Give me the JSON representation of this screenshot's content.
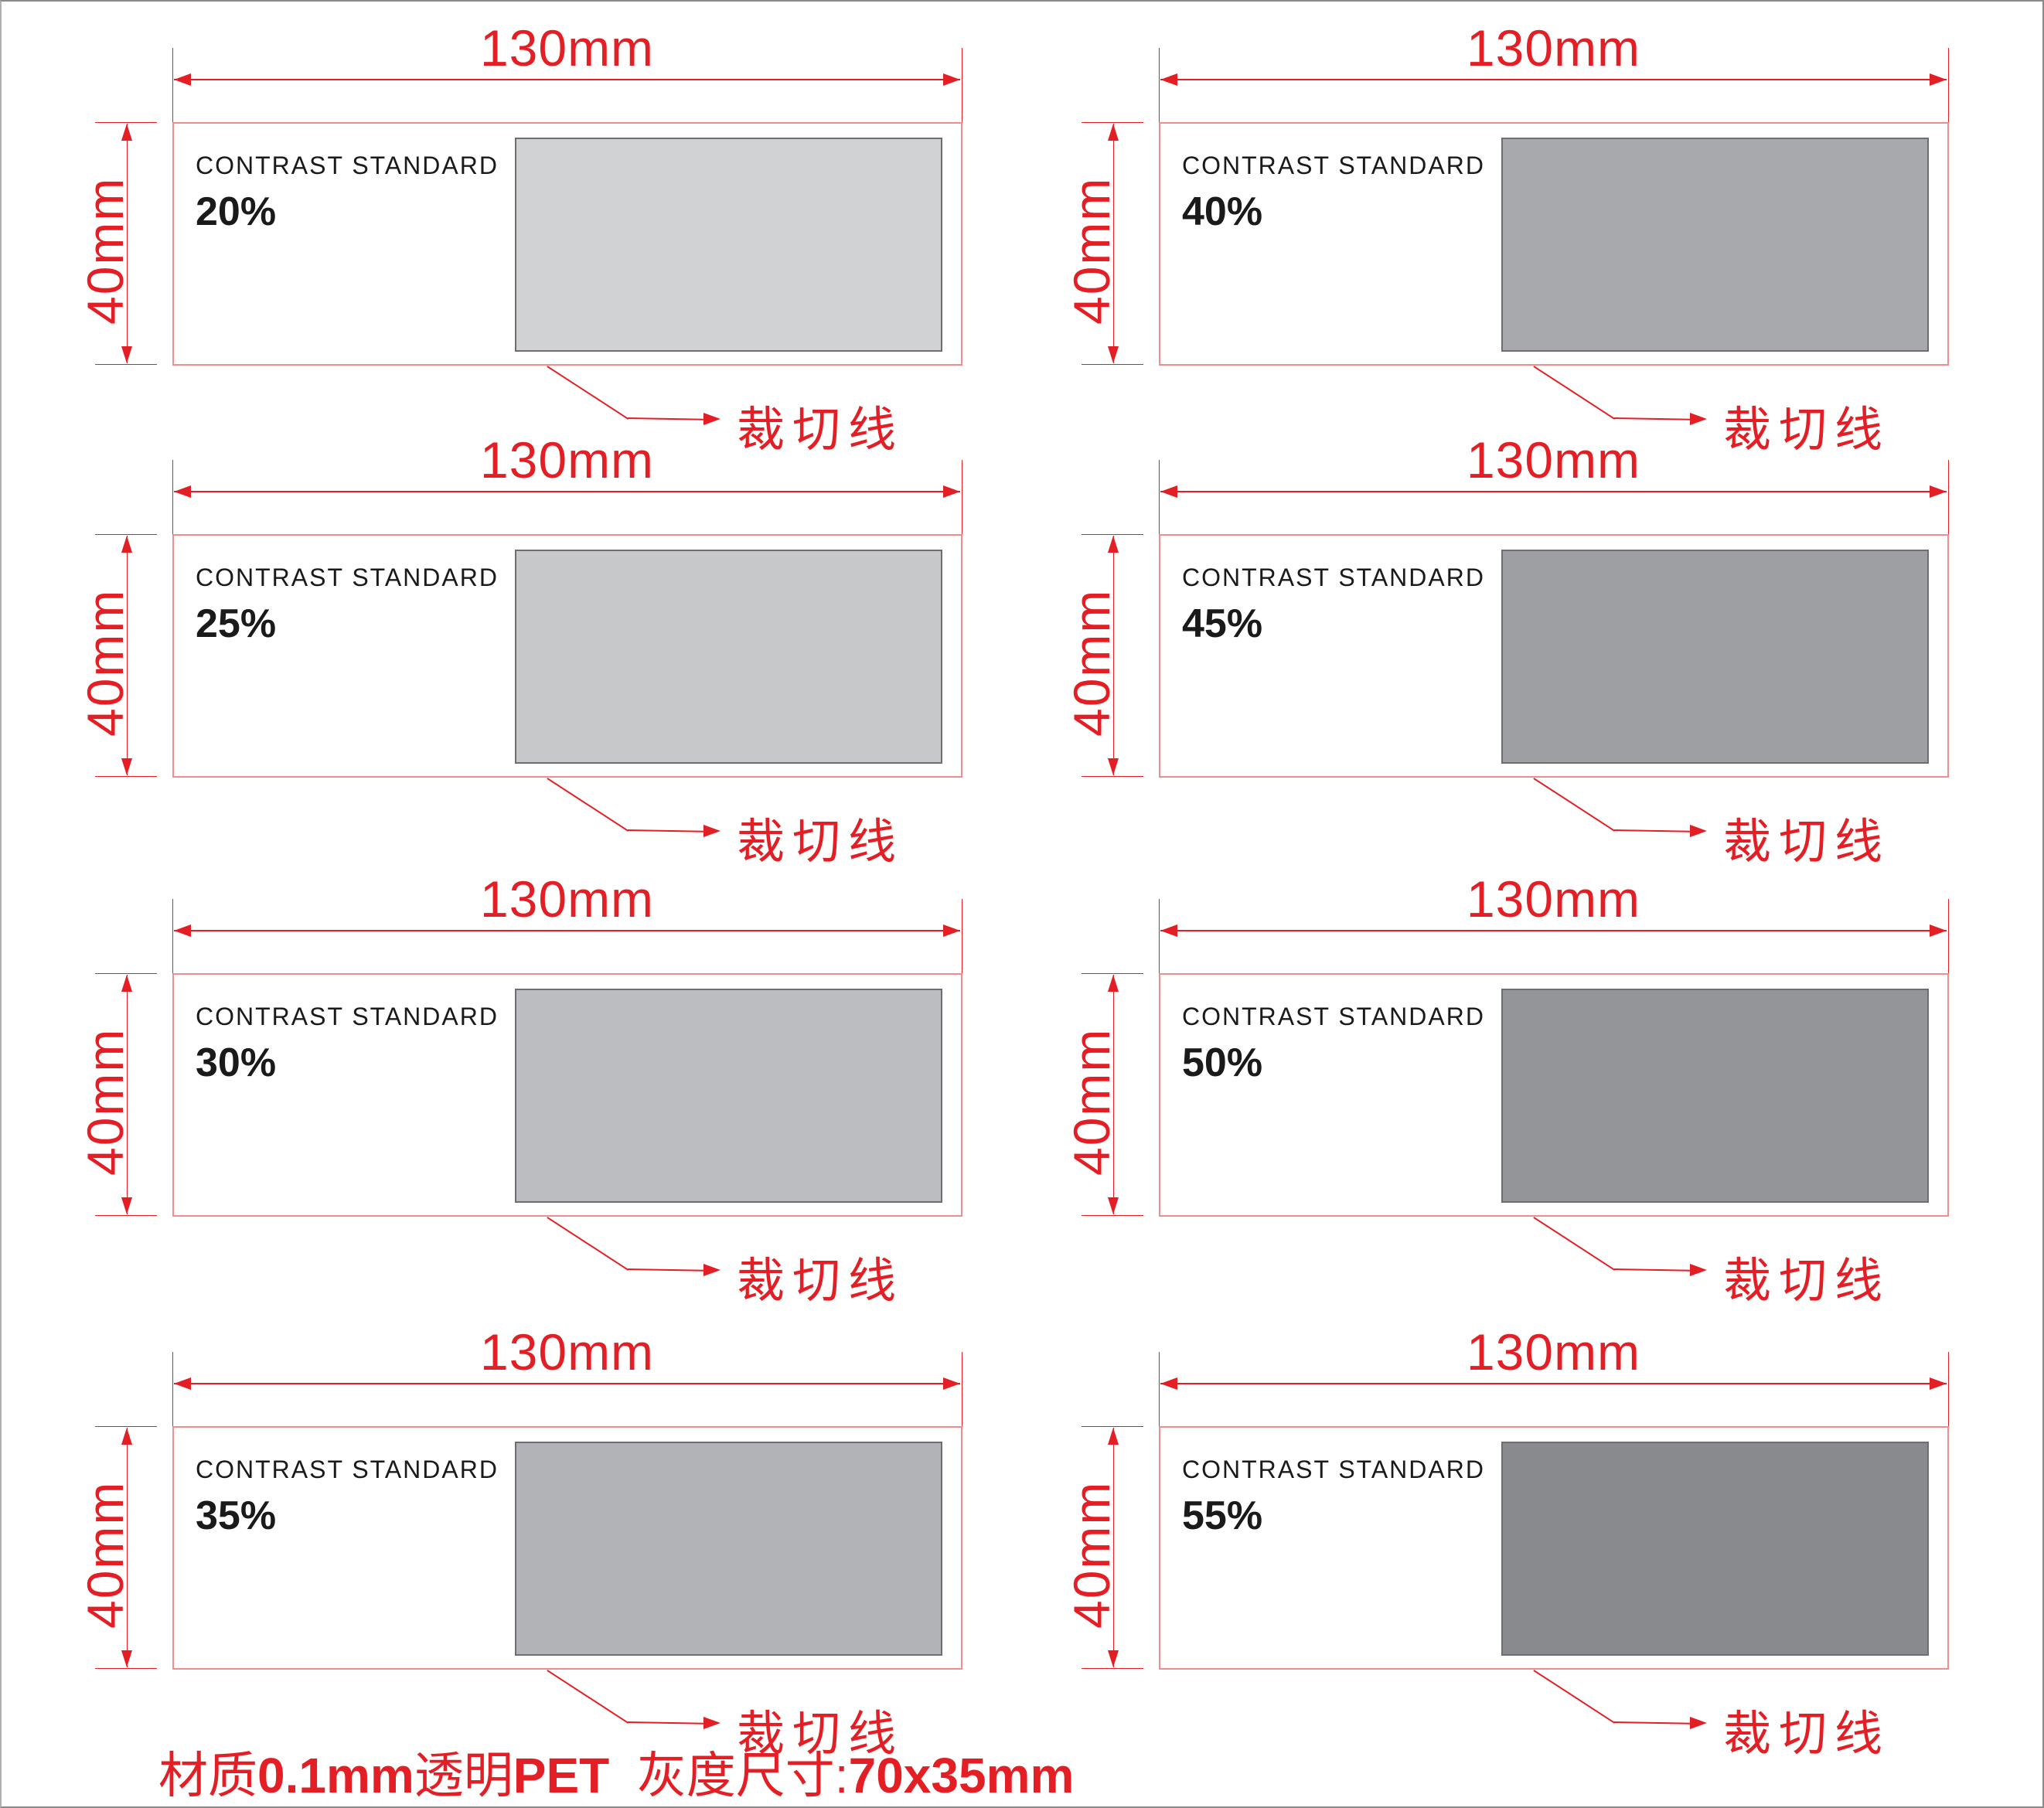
{
  "width_label": "130mm",
  "height_label": "40mm",
  "card_title": "CONTRAST STANDARD",
  "cut_line_label": "裁切线",
  "colors": {
    "dimension_red": "#e31e24",
    "card_border": "#ef8d8f",
    "swatch_border": "#6d6e71",
    "text": "#1a1a1a"
  },
  "cards": [
    {
      "percent": "20%",
      "swatch_color": "#d1d2d4",
      "column": "left",
      "row": 0
    },
    {
      "percent": "40%",
      "swatch_color": "#a7a9ac",
      "column": "right",
      "row": 0
    },
    {
      "percent": "25%",
      "swatch_color": "#c7c8ca",
      "column": "left",
      "row": 1
    },
    {
      "percent": "45%",
      "swatch_color": "#9d9fa2",
      "column": "right",
      "row": 1
    },
    {
      "percent": "30%",
      "swatch_color": "#bcbdc0",
      "column": "left",
      "row": 2
    },
    {
      "percent": "50%",
      "swatch_color": "#939598",
      "column": "right",
      "row": 2
    },
    {
      "percent": "35%",
      "swatch_color": "#b1b3b6",
      "column": "left",
      "row": 3
    },
    {
      "percent": "55%",
      "swatch_color": "#898a8d",
      "column": "right",
      "row": 3
    }
  ],
  "footer": {
    "material_prefix": "材质",
    "material_value": "0.1mm",
    "material_type": "透明",
    "material_name": "PET",
    "gray_size_label": "灰度尺寸:",
    "gray_size_value": "70x35mm"
  }
}
